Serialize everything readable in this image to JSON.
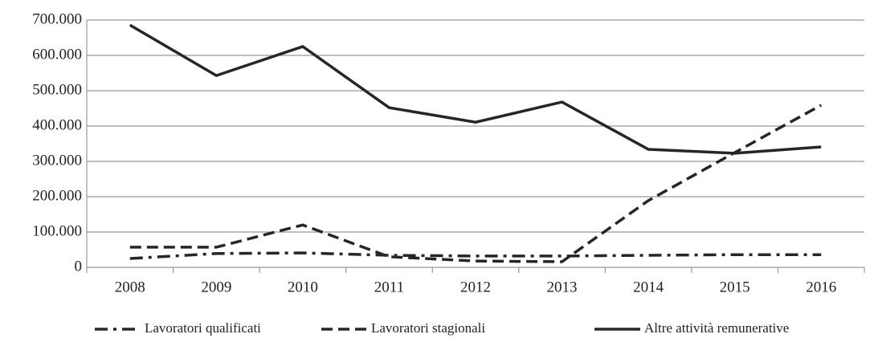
{
  "chart_data": {
    "type": "line",
    "categories": [
      "2008",
      "2009",
      "2010",
      "2011",
      "2012",
      "2013",
      "2014",
      "2015",
      "2016"
    ],
    "series": [
      {
        "name": "Lavoratori qualificati",
        "color": "#262626",
        "dash": "dashdot",
        "values": [
          25000,
          39000,
          41000,
          34000,
          32000,
          32000,
          34000,
          36000,
          36000
        ]
      },
      {
        "name": "Lavoratori stagionali",
        "color": "#262626",
        "dash": "dashed",
        "values": [
          57000,
          57000,
          120000,
          30000,
          18000,
          16000,
          189000,
          325000,
          459000
        ]
      },
      {
        "name": "Altre attività remunerative",
        "color": "#262626",
        "dash": "solid",
        "values": [
          686000,
          543000,
          625000,
          452000,
          411000,
          468000,
          334000,
          323000,
          341000
        ]
      }
    ],
    "ylim": [
      0,
      700000
    ],
    "yticks": [
      0,
      {
        "value": 100000,
        "label": "100.000"
      },
      {
        "value": 200000,
        "label": "200.000"
      },
      {
        "value": 300000,
        "label": "300.000"
      },
      {
        "value": 400000,
        "label": "400.000"
      },
      {
        "value": 500000,
        "label": "500.000"
      },
      {
        "value": 600000,
        "label": "600.000"
      },
      {
        "value": 700000,
        "label": "700.000"
      }
    ],
    "grid": true,
    "legend": "bottom"
  }
}
